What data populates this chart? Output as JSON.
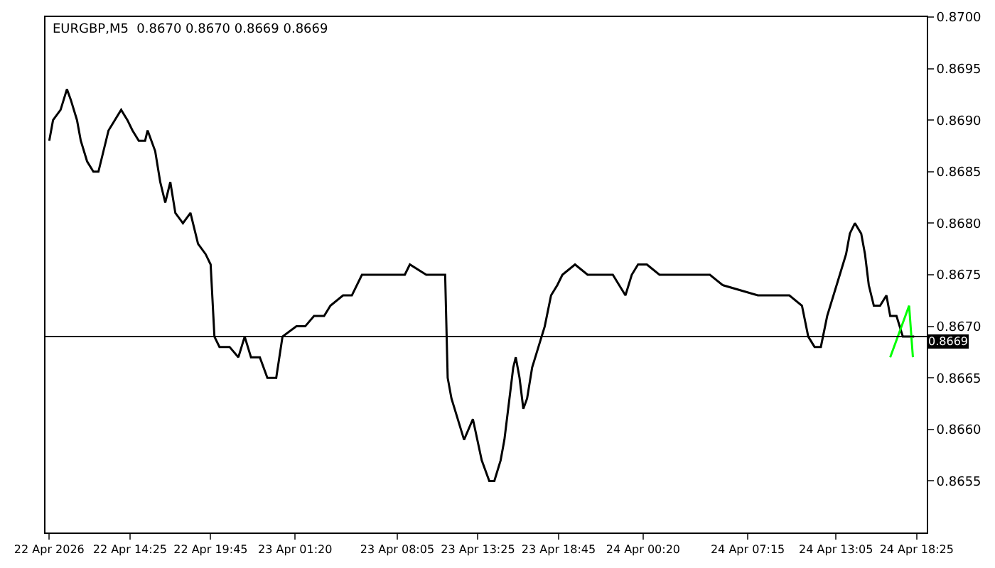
{
  "chart_data": {
    "type": "line",
    "title": "EURGBP,M5  0.8670 0.8670 0.8669 0.8669",
    "x": [
      "2026-04-22T09:05",
      "2026-04-22T09:20",
      "2026-04-22T09:50",
      "2026-04-22T10:15",
      "2026-04-22T10:30",
      "2026-04-22T10:55",
      "2026-04-22T11:10",
      "2026-04-22T11:35",
      "2026-04-22T12:00",
      "2026-04-22T12:20",
      "2026-04-22T12:40",
      "2026-04-22T13:00",
      "2026-04-22T13:25",
      "2026-04-22T13:50",
      "2026-04-22T14:15",
      "2026-04-22T14:35",
      "2026-04-22T15:00",
      "2026-04-22T15:25",
      "2026-04-22T15:35",
      "2026-04-22T16:05",
      "2026-04-22T16:25",
      "2026-04-22T16:45",
      "2026-04-22T17:05",
      "2026-04-22T17:25",
      "2026-04-22T17:55",
      "2026-04-22T18:25",
      "2026-04-22T18:55",
      "2026-04-22T19:25",
      "2026-04-22T19:45",
      "2026-04-22T20:00",
      "2026-04-22T20:20",
      "2026-04-22T21:00",
      "2026-04-22T21:35",
      "2026-04-22T22:00",
      "2026-04-22T22:25",
      "2026-04-22T23:00",
      "2026-04-22T23:30",
      "2026-04-23T00:05",
      "2026-04-23T00:30",
      "2026-04-23T01:25",
      "2026-04-23T02:00",
      "2026-04-23T02:35",
      "2026-04-23T03:15",
      "2026-04-23T03:40",
      "2026-04-23T04:30",
      "2026-04-23T05:05",
      "2026-04-23T05:45",
      "2026-04-23T06:20",
      "2026-04-23T08:35",
      "2026-04-23T08:55",
      "2026-04-23T10:00",
      "2026-04-23T11:15",
      "2026-04-23T11:25",
      "2026-04-23T11:40",
      "2026-04-23T12:30",
      "2026-04-23T13:05",
      "2026-04-23T13:40",
      "2026-04-23T14:10",
      "2026-04-23T14:30",
      "2026-04-23T14:55",
      "2026-04-23T15:10",
      "2026-04-23T15:30",
      "2026-04-23T15:45",
      "2026-04-23T15:55",
      "2026-04-23T16:10",
      "2026-04-23T16:25",
      "2026-04-23T16:40",
      "2026-04-23T17:00",
      "2026-04-23T17:25",
      "2026-04-23T17:50",
      "2026-04-23T18:15",
      "2026-04-23T18:40",
      "2026-04-23T19:00",
      "2026-04-23T19:50",
      "2026-04-23T20:40",
      "2026-04-23T21:30",
      "2026-04-23T22:20",
      "2026-04-23T23:10",
      "2026-04-23T23:35",
      "2026-04-24T00:00",
      "2026-04-24T00:35",
      "2026-04-24T01:25",
      "2026-04-24T02:15",
      "2026-04-24T03:05",
      "2026-04-24T03:55",
      "2026-04-24T04:45",
      "2026-04-24T05:35",
      "2026-04-24T07:55",
      "2026-04-24T08:45",
      "2026-04-24T10:00",
      "2026-04-24T10:50",
      "2026-04-24T11:15",
      "2026-04-24T11:40",
      "2026-04-24T12:05",
      "2026-04-24T12:30",
      "2026-04-24T13:20",
      "2026-04-24T13:45",
      "2026-04-24T14:00",
      "2026-04-24T14:20",
      "2026-04-24T14:45",
      "2026-04-24T15:00",
      "2026-04-24T15:15",
      "2026-04-24T15:35",
      "2026-04-24T16:00",
      "2026-04-24T16:25",
      "2026-04-24T16:40",
      "2026-04-24T17:05",
      "2026-04-24T17:30",
      "2026-04-24T17:55",
      "2026-04-24T18:15"
    ],
    "series": [
      {
        "color": "#000000",
        "values": [
          0.8688,
          0.869,
          0.8691,
          0.8693,
          0.8692,
          0.869,
          0.8688,
          0.8686,
          0.8685,
          0.8685,
          0.8687,
          0.8689,
          0.869,
          0.8691,
          0.869,
          0.8689,
          0.8688,
          0.8688,
          0.8689,
          0.8687,
          0.8684,
          0.8682,
          0.8684,
          0.8681,
          0.868,
          0.8681,
          0.8678,
          0.8677,
          0.8676,
          0.8669,
          0.8668,
          0.8668,
          0.8667,
          0.8669,
          0.8667,
          0.8667,
          0.8665,
          0.8665,
          0.8669,
          0.867,
          0.867,
          0.8671,
          0.8671,
          0.8672,
          0.8673,
          0.8673,
          0.8675,
          0.8675,
          0.8675,
          0.8676,
          0.8675,
          0.8675,
          0.8665,
          0.8663,
          0.8659,
          0.8661,
          0.8657,
          0.8655,
          0.8655,
          0.8657,
          0.8659,
          0.8663,
          0.8666,
          0.8667,
          0.8665,
          0.8662,
          0.8663,
          0.8666,
          0.8668,
          0.867,
          0.8673,
          0.8674,
          0.8675,
          0.8676,
          0.8675,
          0.8675,
          0.8675,
          0.8673,
          0.8675,
          0.8676,
          0.8676,
          0.8675,
          0.8675,
          0.8675,
          0.8675,
          0.8675,
          0.8674,
          0.8673,
          0.8673,
          0.8673,
          0.8672,
          0.8669,
          0.8668,
          0.8668,
          0.8671,
          0.8675,
          0.8677,
          0.8679,
          0.868,
          0.8679,
          0.8677,
          0.8674,
          0.8672,
          0.8672,
          0.8673,
          0.8671,
          0.8671,
          0.8669,
          0.8669,
          0.8669
        ]
      },
      {
        "color": "#00ff00",
        "x": [
          "2026-04-24T16:40",
          "2026-04-24T17:55",
          "2026-04-24T18:10"
        ],
        "values": [
          0.8667,
          0.8672,
          0.8667
        ]
      }
    ],
    "xlim": [
      "2026-04-22T08:50",
      "2026-04-24T19:05"
    ],
    "xticks": [
      {
        "value": "2026-04-22T09:05",
        "label": "22 Apr 2026"
      },
      {
        "value": "2026-04-22T14:25",
        "label": "22 Apr 14:25"
      },
      {
        "value": "2026-04-22T19:45",
        "label": "22 Apr 19:45"
      },
      {
        "value": "2026-04-23T01:20",
        "label": "23 Apr 01:20"
      },
      {
        "value": "2026-04-23T08:05",
        "label": "23 Apr 08:05"
      },
      {
        "value": "2026-04-23T13:25",
        "label": "23 Apr 13:25"
      },
      {
        "value": "2026-04-23T18:45",
        "label": "23 Apr 18:45"
      },
      {
        "value": "2026-04-24T00:20",
        "label": "24 Apr 00:20"
      },
      {
        "value": "2026-04-24T07:15",
        "label": "24 Apr 07:15"
      },
      {
        "value": "2026-04-24T13:05",
        "label": "24 Apr 13:05"
      },
      {
        "value": "2026-04-24T18:25",
        "label": "24 Apr 18:25"
      }
    ],
    "ylim": [
      0.865,
      0.87
    ],
    "yticks": [
      0.8655,
      {
        "value": 0.866,
        "label": "0.8660"
      },
      0.8665,
      {
        "value": 0.867,
        "label": "0.8670"
      },
      0.8675,
      {
        "value": 0.868,
        "label": "0.8680"
      },
      0.8685,
      {
        "value": 0.869,
        "label": "0.8690"
      },
      0.8695,
      {
        "value": 0.87,
        "label": "0.8700"
      }
    ],
    "ref_lines": [
      {
        "axis": "y",
        "value": 0.8669,
        "label": "0.8669",
        "color": "#000000"
      }
    ],
    "marker": "none",
    "line_style": "solid"
  }
}
